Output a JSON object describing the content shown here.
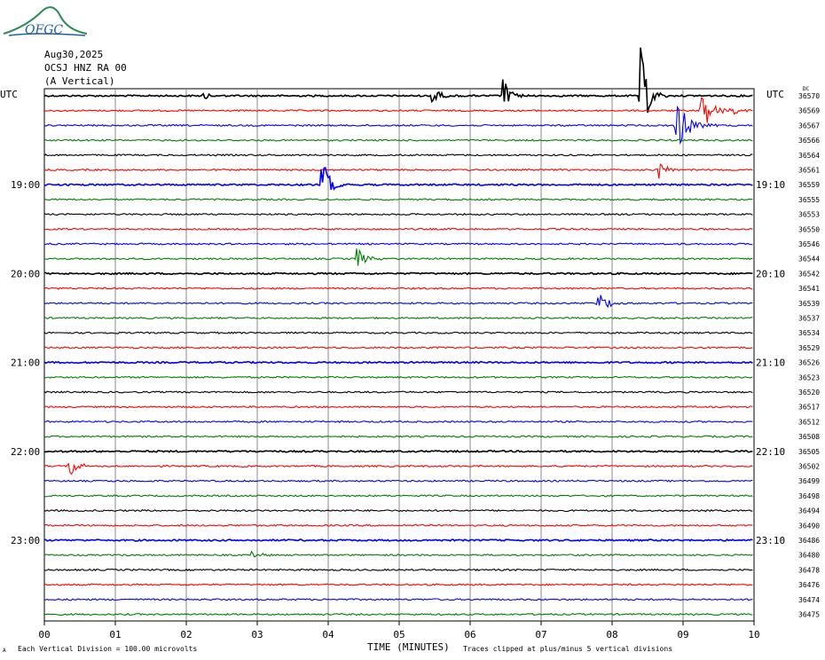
{
  "logo": {
    "text": "OFGC",
    "icon": "ofgc-logo-icon"
  },
  "header": {
    "date": "Aug30,2025",
    "station": "OCSJ HNZ RA 00",
    "component": "(A Vertical)"
  },
  "utc_label_left": "UTC",
  "utc_label_right": "UTC",
  "right_col_header": "DC",
  "footer": {
    "left_glyph": "A",
    "division_note": "Each Vertical Division =  100.00 microvolts",
    "clip_note": "Traces clipped at plus/minus 5 vertical divisions"
  },
  "colors": {
    "trace_cycle": [
      "#000000",
      "#ff0000",
      "#0000ff",
      "#008000"
    ],
    "grid": "#888888"
  },
  "chart_data": {
    "type": "line",
    "title": "",
    "xlabel": "TIME (MINUTES)",
    "ylabel": "",
    "xlim": [
      0,
      10
    ],
    "x_ticks": [
      "00",
      "01",
      "02",
      "03",
      "04",
      "05",
      "06",
      "07",
      "08",
      "09",
      "10"
    ],
    "grid": true,
    "left_time_labels": [
      "19:00",
      "20:00",
      "21:00",
      "22:00",
      "23:00"
    ],
    "right_time_labels": [
      "19:10",
      "20:10",
      "21:10",
      "22:10",
      "23:10"
    ],
    "dc_offsets": [
      "36570",
      "36569",
      "36567",
      "36566",
      "36564",
      "36561",
      "36559",
      "36555",
      "36553",
      "36550",
      "36546",
      "36544",
      "36542",
      "36541",
      "36539",
      "36537",
      "36534",
      "36529",
      "36526",
      "36523",
      "36520",
      "36517",
      "36512",
      "36508",
      "36505",
      "36502",
      "36499",
      "36498",
      "36494",
      "36490",
      "36486",
      "36480",
      "36478",
      "36476",
      "36474",
      "36475"
    ],
    "events": [
      {
        "row": 0,
        "x": 2.2,
        "amp": 6,
        "dur": 0.2
      },
      {
        "row": 0,
        "x": 5.45,
        "amp": 18,
        "dur": 0.18
      },
      {
        "row": 0,
        "x": 6.45,
        "amp": 24,
        "dur": 0.2
      },
      {
        "row": 0,
        "x": 8.4,
        "amp": 55,
        "dur": 0.22
      },
      {
        "row": 1,
        "x": 9.25,
        "amp": 28,
        "dur": 0.3
      },
      {
        "row": 1,
        "x": 9.65,
        "amp": 10,
        "dur": 0.2
      },
      {
        "row": 2,
        "x": 8.9,
        "amp": 30,
        "dur": 0.35
      },
      {
        "row": 5,
        "x": 8.65,
        "amp": 14,
        "dur": 0.22
      },
      {
        "row": 6,
        "x": 3.9,
        "amp": 38,
        "dur": 0.2
      },
      {
        "row": 8,
        "x": 8.85,
        "amp": 3,
        "dur": 0.05
      },
      {
        "row": 11,
        "x": 4.4,
        "amp": 14,
        "dur": 0.22
      },
      {
        "row": 14,
        "x": 7.8,
        "amp": 16,
        "dur": 0.22
      },
      {
        "row": 25,
        "x": 0.35,
        "amp": 16,
        "dur": 0.22
      },
      {
        "row": 31,
        "x": 2.9,
        "amp": 5,
        "dur": 0.3
      }
    ]
  }
}
